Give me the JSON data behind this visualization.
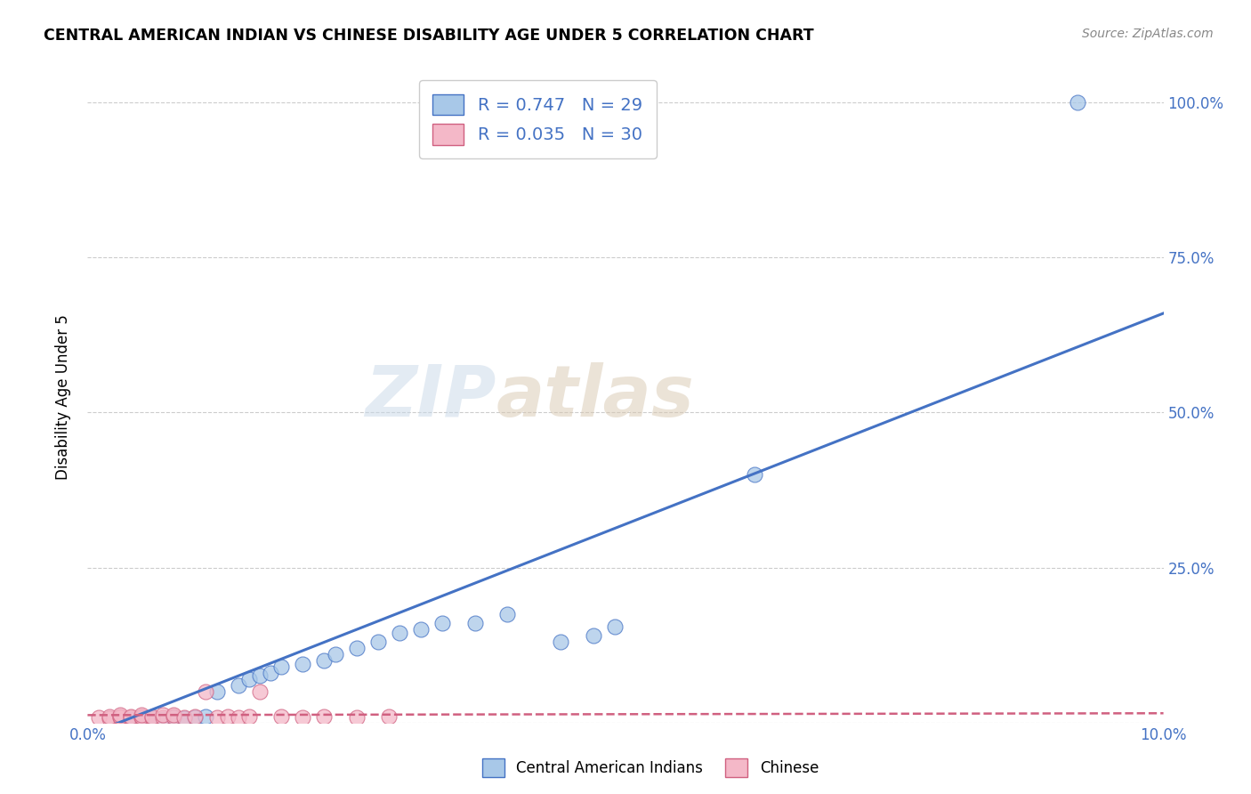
{
  "title": "CENTRAL AMERICAN INDIAN VS CHINESE DISABILITY AGE UNDER 5 CORRELATION CHART",
  "source": "Source: ZipAtlas.com",
  "ylabel": "Disability Age Under 5",
  "xlim": [
    0.0,
    0.1
  ],
  "ylim": [
    0.0,
    1.05
  ],
  "blue_color": "#a8c8e8",
  "blue_line_color": "#4472c4",
  "pink_color": "#f4b8c8",
  "pink_line_color": "#d06080",
  "r_blue": 0.747,
  "n_blue": 29,
  "r_pink": 0.035,
  "n_pink": 30,
  "watermark_zip": "ZIP",
  "watermark_atlas": "atlas",
  "legend_label_blue": "Central American Indians",
  "legend_label_pink": "Chinese",
  "blue_scatter_x": [
    0.004,
    0.005,
    0.006,
    0.007,
    0.008,
    0.009,
    0.01,
    0.011,
    0.012,
    0.014,
    0.015,
    0.016,
    0.017,
    0.018,
    0.02,
    0.022,
    0.023,
    0.025,
    0.027,
    0.029,
    0.031,
    0.033,
    0.036,
    0.039,
    0.044,
    0.047,
    0.049,
    0.062,
    0.092
  ],
  "blue_scatter_y": [
    0.005,
    0.006,
    0.007,
    0.006,
    0.008,
    0.007,
    0.008,
    0.01,
    0.05,
    0.06,
    0.07,
    0.075,
    0.08,
    0.09,
    0.095,
    0.1,
    0.11,
    0.12,
    0.13,
    0.145,
    0.15,
    0.16,
    0.16,
    0.175,
    0.13,
    0.14,
    0.155,
    0.4,
    1.0
  ],
  "pink_scatter_x": [
    0.001,
    0.002,
    0.002,
    0.003,
    0.003,
    0.003,
    0.004,
    0.004,
    0.005,
    0.005,
    0.005,
    0.006,
    0.006,
    0.007,
    0.007,
    0.008,
    0.008,
    0.009,
    0.01,
    0.011,
    0.012,
    0.013,
    0.014,
    0.015,
    0.016,
    0.018,
    0.02,
    0.022,
    0.025,
    0.028
  ],
  "pink_scatter_y": [
    0.008,
    0.007,
    0.01,
    0.008,
    0.01,
    0.012,
    0.008,
    0.01,
    0.008,
    0.01,
    0.012,
    0.008,
    0.01,
    0.008,
    0.012,
    0.01,
    0.012,
    0.008,
    0.01,
    0.05,
    0.008,
    0.01,
    0.008,
    0.01,
    0.05,
    0.01,
    0.008,
    0.01,
    0.008,
    0.01
  ],
  "blue_line_x0": 0.0,
  "blue_line_y0": -0.02,
  "blue_line_x1": 0.1,
  "blue_line_y1": 0.66,
  "pink_line_x0": 0.0,
  "pink_line_y0": 0.012,
  "pink_line_x1": 0.1,
  "pink_line_y1": 0.015,
  "ytick_pos": [
    0.0,
    0.25,
    0.5,
    0.75,
    1.0
  ],
  "ytick_labels": [
    "",
    "25.0%",
    "50.0%",
    "75.0%",
    "100.0%"
  ]
}
